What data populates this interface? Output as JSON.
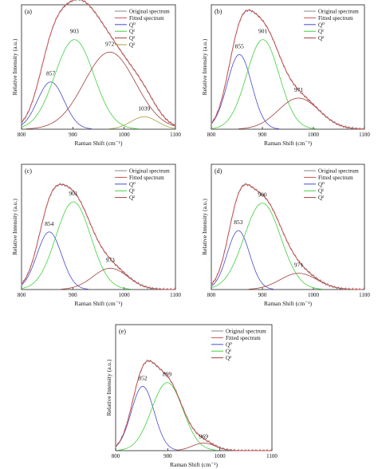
{
  "figure": {
    "colors": {
      "original": "#8a8a8a",
      "fitted": "#d05050",
      "Q0": "#4a4ad0",
      "Q1": "#40d040",
      "Q2": "#a04040",
      "Q3": "#a8a040",
      "axis": "#222222"
    }
  },
  "chart_data": [
    {
      "type": "line",
      "panel": "(a)",
      "xlabel": "Raman Shift (cm⁻¹)",
      "ylabel": "Relative Intensity (a.u.)",
      "xlim": [
        800,
        1100
      ],
      "ylim": [
        0,
        1.0
      ],
      "xticks": [
        "800",
        "900",
        "1000",
        "1100"
      ],
      "legend": [
        "Original spectrum",
        "Fitted spectrum",
        "Q⁰",
        "Q¹",
        "Q²",
        "Q³"
      ],
      "legend_position": "top-right",
      "series": [
        {
          "name": "Q⁰",
          "center": 857,
          "height": 0.38,
          "sigma": 26
        },
        {
          "name": "Q¹",
          "center": 903,
          "height": 0.72,
          "sigma": 38
        },
        {
          "name": "Q²",
          "center": 972,
          "height": 0.62,
          "sigma": 50
        },
        {
          "name": "Q³",
          "center": 1039,
          "height": 0.1,
          "sigma": 26
        }
      ],
      "peak_labels": [
        "857",
        "903",
        "972",
        "1039"
      ]
    },
    {
      "type": "line",
      "panel": "(b)",
      "xlabel": "Raman Shift (cm⁻¹)",
      "ylabel": "Relative Intensity (a.u.)",
      "xlim": [
        800,
        1100
      ],
      "ylim": [
        0,
        1.0
      ],
      "xticks": [
        "800",
        "900",
        "1000",
        "1100"
      ],
      "legend": [
        "Original spectrum",
        "Fitted spectrum",
        "Q⁰",
        "Q¹",
        "Q²"
      ],
      "legend_position": "top-right",
      "series": [
        {
          "name": "Q⁰",
          "center": 855,
          "height": 0.6,
          "sigma": 24
        },
        {
          "name": "Q¹",
          "center": 901,
          "height": 0.72,
          "sigma": 32
        },
        {
          "name": "Q²",
          "center": 971,
          "height": 0.25,
          "sigma": 40
        }
      ],
      "peak_labels": [
        "855",
        "901",
        "971"
      ]
    },
    {
      "type": "line",
      "panel": "(c)",
      "xlabel": "Raman Shift (cm⁻¹)",
      "ylabel": "Relative Intensity (a.u.)",
      "xlim": [
        800,
        1100
      ],
      "ylim": [
        0,
        1.0
      ],
      "xticks": [
        "800",
        "900",
        "1000",
        "1100"
      ],
      "legend": [
        "Original spectrum",
        "Fitted spectrum",
        "Q⁰",
        "Q¹",
        "Q²"
      ],
      "legend_position": "top-right",
      "series": [
        {
          "name": "Q⁰",
          "center": 854,
          "height": 0.46,
          "sigma": 24
        },
        {
          "name": "Q¹",
          "center": 901,
          "height": 0.7,
          "sigma": 34
        },
        {
          "name": "Q²",
          "center": 973,
          "height": 0.17,
          "sigma": 34
        }
      ],
      "peak_labels": [
        "854",
        "901",
        "973"
      ]
    },
    {
      "type": "line",
      "panel": "(d)",
      "xlabel": "Raman Shift (cm⁻¹)",
      "ylabel": "Relative Intensity (a.u.)",
      "xlim": [
        800,
        1100
      ],
      "ylim": [
        0,
        1.0
      ],
      "xticks": [
        "800",
        "900",
        "1000",
        "1100"
      ],
      "legend": [
        "Original spectrum",
        "Fitted spectrum",
        "Q⁰",
        "Q¹",
        "Q²"
      ],
      "legend_position": "top-right",
      "series": [
        {
          "name": "Q⁰",
          "center": 853,
          "height": 0.47,
          "sigma": 22
        },
        {
          "name": "Q¹",
          "center": 900,
          "height": 0.69,
          "sigma": 36
        },
        {
          "name": "Q²",
          "center": 971,
          "height": 0.13,
          "sigma": 36
        }
      ],
      "peak_labels": [
        "853",
        "900",
        "971"
      ]
    },
    {
      "type": "line",
      "panel": "(e)",
      "xlabel": "Raman Shift (cm⁻¹)",
      "ylabel": "Relative Intensity (a.u.)",
      "xlim": [
        800,
        1100
      ],
      "ylim": [
        0,
        1.0
      ],
      "xticks": [
        "800",
        "900",
        "1000",
        "1100"
      ],
      "legend": [
        "Original spectrum",
        "Fitted spectrum",
        "Q⁰",
        "Q¹",
        "Q²"
      ],
      "legend_position": "top-right",
      "series": [
        {
          "name": "Q⁰",
          "center": 852,
          "height": 0.51,
          "sigma": 22
        },
        {
          "name": "Q¹",
          "center": 899,
          "height": 0.54,
          "sigma": 30
        },
        {
          "name": "Q²",
          "center": 969,
          "height": 0.06,
          "sigma": 22
        }
      ],
      "peak_labels": [
        "852",
        "899",
        "969"
      ]
    }
  ]
}
